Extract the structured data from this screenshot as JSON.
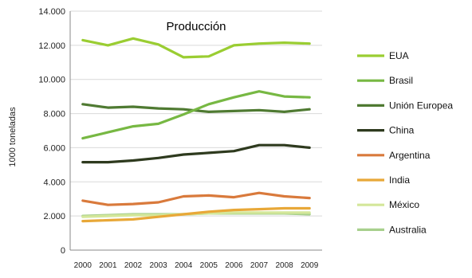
{
  "chart_data": {
    "type": "line",
    "title": "Producción",
    "xlabel": "",
    "ylabel": "1000 toneladas",
    "x": [
      "2000",
      "2001",
      "2002",
      "2003",
      "2004",
      "2005",
      "2006",
      "2007",
      "2008",
      "2009"
    ],
    "ylim": [
      0,
      14000
    ],
    "yticks": [
      0,
      2000,
      4000,
      6000,
      8000,
      10000,
      12000,
      14000
    ],
    "ytick_labels": [
      "0",
      "2.000",
      "4.000",
      "6.000",
      "8.000",
      "10.000",
      "12.000",
      "14.000"
    ],
    "grid": true,
    "legend_position": "right",
    "series": [
      {
        "name": "EUA",
        "color": "#9acd32",
        "values": [
          12300,
          12000,
          12400,
          12050,
          11300,
          11350,
          12000,
          12100,
          12150,
          12100
        ]
      },
      {
        "name": "Brasil",
        "color": "#77b843",
        "values": [
          6550,
          6900,
          7250,
          7400,
          7950,
          8550,
          8950,
          9300,
          9000,
          8950
        ]
      },
      {
        "name": "Unión Europea",
        "color": "#4f7a32",
        "values": [
          8550,
          8350,
          8400,
          8300,
          8250,
          8100,
          8150,
          8200,
          8100,
          8250
        ]
      },
      {
        "name": "China",
        "color": "#2e3a1e",
        "values": [
          5150,
          5150,
          5250,
          5400,
          5600,
          5700,
          5800,
          6150,
          6150,
          6000
        ]
      },
      {
        "name": "Argentina",
        "color": "#d97a3c",
        "values": [
          2900,
          2650,
          2700,
          2800,
          3150,
          3200,
          3100,
          3350,
          3150,
          3050
        ]
      },
      {
        "name": "India",
        "color": "#e8a838",
        "values": [
          1700,
          1750,
          1800,
          1950,
          2100,
          2250,
          2350,
          2400,
          2450,
          2450
        ]
      },
      {
        "name": "México",
        "color": "#d4e79a",
        "values": [
          1950,
          2000,
          2050,
          2050,
          2100,
          2150,
          2200,
          2200,
          2200,
          2200
        ]
      },
      {
        "name": "Australia",
        "color": "#a8d08d",
        "values": [
          2000,
          2050,
          2100,
          2100,
          2100,
          2150,
          2150,
          2150,
          2150,
          2100
        ]
      }
    ]
  }
}
